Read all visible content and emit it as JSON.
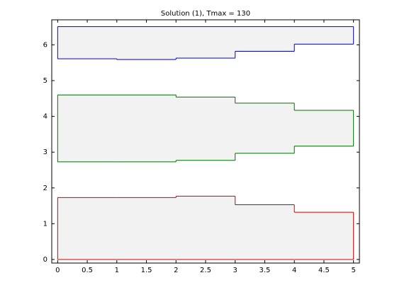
{
  "chart_data": {
    "type": "step_band",
    "title": "Solution (1), Tmax = 130",
    "bins": [
      0,
      1,
      2,
      3,
      4,
      5
    ],
    "series": [
      {
        "color": "#cc0000",
        "lower": [
          0,
          0,
          0,
          0,
          0
        ],
        "upper": [
          1.73,
          1.73,
          1.77,
          1.53,
          1.32
        ]
      },
      {
        "color": "#007000",
        "lower": [
          2.73,
          2.73,
          2.77,
          2.97,
          3.17
        ],
        "upper": [
          4.6,
          4.6,
          4.54,
          4.37,
          4.17
        ]
      },
      {
        "color": "#0000cc",
        "lower": [
          5.61,
          5.59,
          5.63,
          5.82,
          6.02
        ],
        "upper": [
          6.51,
          6.51,
          6.51,
          6.51,
          6.51
        ]
      }
    ],
    "fill": "#f2f2f2",
    "xlim": [
      -0.1,
      5.1
    ],
    "ylim": [
      -0.1,
      6.7
    ],
    "xticks": [
      0,
      0.5,
      1,
      1.5,
      2,
      2.5,
      3,
      3.5,
      4,
      4.5,
      5
    ],
    "yticks": [
      0,
      1,
      2,
      3,
      4,
      5,
      6
    ]
  }
}
